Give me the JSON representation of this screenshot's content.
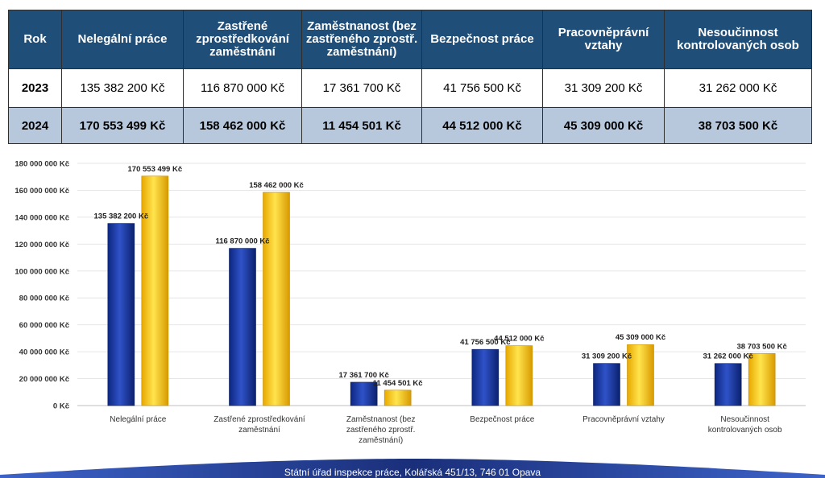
{
  "table": {
    "headers": [
      "Rok",
      "Nelegální práce",
      "Zastřené zprostředkování zaměstnání",
      "Zaměstnanost (bez zastřeného zprostř. zaměstnání)",
      "Bezpečnost práce",
      "Pracovněprávní vztahy",
      "Nesoučinnost kontrolovaných osob"
    ],
    "rows": [
      {
        "year": "2023",
        "cells": [
          "135 382 200 Kč",
          "116 870 000 Kč",
          "17 361 700 Kč",
          "41 756 500 Kč",
          "31 309 200 Kč",
          "31 262 000 Kč"
        ]
      },
      {
        "year": "2024",
        "cells": [
          "170 553 499 Kč",
          "158 462 000 Kč",
          "11 454 501 Kč",
          "44 512 000 Kč",
          "45 309 000 Kč",
          "38 703 500 Kč"
        ]
      }
    ]
  },
  "chart_data": {
    "type": "bar",
    "categories": [
      [
        "Nelegální práce"
      ],
      [
        "Zastřené zprostředkování",
        "zaměstnání"
      ],
      [
        "Zaměstnanost (bez",
        "zastřeného zprostř.",
        "zaměstnání)"
      ],
      [
        "Bezpečnost práce"
      ],
      [
        "Pracovněprávní vztahy"
      ],
      [
        "Nesoučinnost",
        "kontrolovaných osob"
      ]
    ],
    "series": [
      {
        "color": "#1a3a9c",
        "values": [
          135382200,
          116870000,
          17361700,
          41756500,
          31309200,
          31262000
        ]
      },
      {
        "color": "#ffc800",
        "values": [
          170553499,
          158462000,
          11454501,
          44512000,
          45309000,
          38703500
        ]
      }
    ],
    "data_labels": [
      [
        "135 382 200 Kč",
        "116 870 000 Kč",
        "17 361 700 Kč",
        "41 756 500 Kč",
        "31 309 200 Kč",
        "31 262 000 Kč"
      ],
      [
        "170 553 499 Kč",
        "158 462 000 Kč",
        "11 454 501 Kč",
        "44 512 000 Kč",
        "45 309 000 Kč",
        "38 703 500 Kč"
      ]
    ],
    "y_ticks": [
      {
        "value": 0,
        "label": "0 Kč"
      },
      {
        "value": 20000000,
        "label": "20 000 000 Kč"
      },
      {
        "value": 40000000,
        "label": "40 000 000 Kč"
      },
      {
        "value": 60000000,
        "label": "60 000 000 Kč"
      },
      {
        "value": 80000000,
        "label": "80 000 000 Kč"
      },
      {
        "value": 100000000,
        "label": "100 000 000 Kč"
      },
      {
        "value": 120000000,
        "label": "120 000 000 Kč"
      },
      {
        "value": 140000000,
        "label": "140 000 000 Kč"
      },
      {
        "value": 160000000,
        "label": "160 000 000 Kč"
      },
      {
        "value": 180000000,
        "label": "180 000 000 Kč"
      }
    ],
    "ylim": [
      0,
      180000000
    ],
    "grid": true,
    "legend": "none"
  },
  "footer": {
    "text": "Státní úřad inspekce práce, Kolářská 451/13, 746 01 Opava"
  }
}
